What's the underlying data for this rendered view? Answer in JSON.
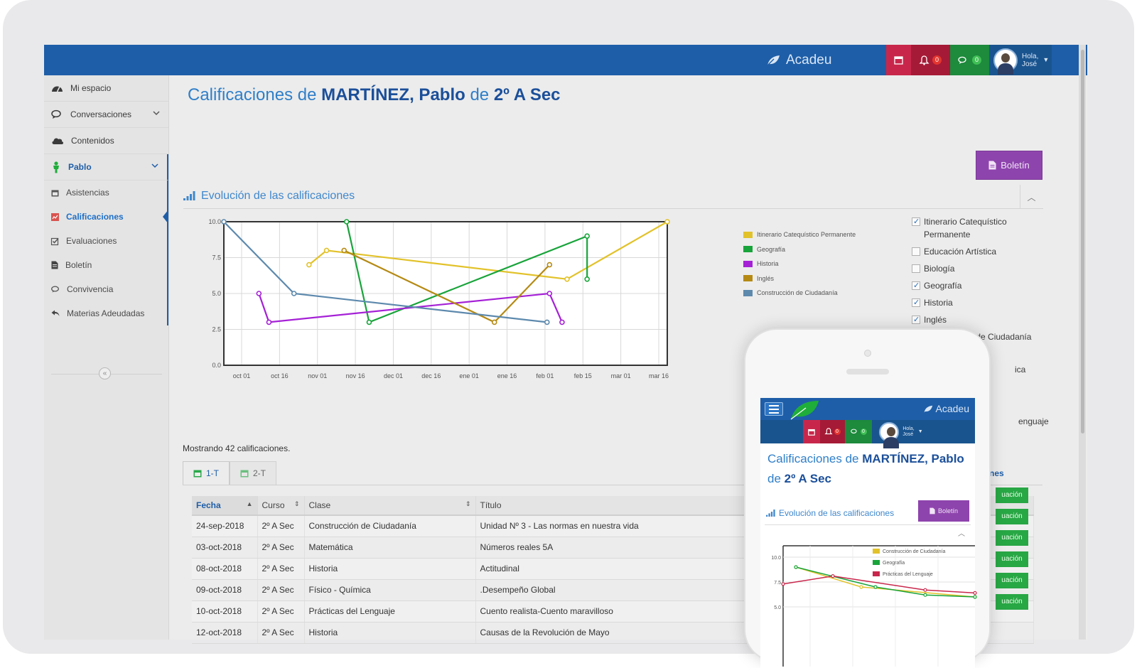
{
  "topbar": {
    "brand": "Acadeu",
    "notifications_count": "0",
    "messages_count": "0",
    "user_greeting": "Hola,",
    "user_name": "José"
  },
  "sidebar": {
    "items": [
      {
        "label": "Mi espacio",
        "icon": "tachometer-icon"
      },
      {
        "label": "Conversaciones",
        "icon": "chat-icon"
      },
      {
        "label": "Contenidos",
        "icon": "cloud-icon"
      },
      {
        "label": "Pablo",
        "icon": "person-icon"
      }
    ],
    "subitems": [
      {
        "label": "Asistencias",
        "icon": "calendar-icon"
      },
      {
        "label": "Calificaciones",
        "icon": "chart-icon"
      },
      {
        "label": "Evaluaciones",
        "icon": "checklist-icon"
      },
      {
        "label": "Boletín",
        "icon": "document-icon"
      },
      {
        "label": "Convivencia",
        "icon": "chat-icon"
      },
      {
        "label": "Materias Adeudadas",
        "icon": "reply-icon"
      }
    ],
    "collapse_label": "«"
  },
  "page": {
    "title_prefix": "Calificaciones de ",
    "student": "MARTÍNEZ, Pablo",
    "title_mid": " de ",
    "course": "2º A Sec",
    "boletin_label": "Boletín",
    "panel_title": "Evolución de las calificaciones",
    "showing_text": "Mostrando 42 calificaciones."
  },
  "chart_data": {
    "type": "line",
    "x_ticks": [
      "oct 01",
      "oct 16",
      "nov 01",
      "nov 16",
      "dec 01",
      "dec 16",
      "ene 01",
      "ene 16",
      "feb 01",
      "feb 15",
      "mar 01",
      "mar 16"
    ],
    "y_ticks": [
      "0.0",
      "2.5",
      "5.0",
      "7.5",
      "10.0"
    ],
    "ylim": [
      0,
      10
    ],
    "x_range": [
      "2018-09-24",
      "2019-03-20"
    ],
    "grid": true,
    "series": [
      {
        "name": "Itinerario Catequístico Permanente",
        "color": "#e2c22a",
        "points": [
          [
            "2018-10-28",
            7.0
          ],
          [
            "2018-11-04",
            8.0
          ],
          [
            "2019-02-08",
            6.0
          ],
          [
            "2019-03-20",
            10.0
          ]
        ]
      },
      {
        "name": "Geografía",
        "color": "#18a43a",
        "points": [
          [
            "2018-11-12",
            10.0
          ],
          [
            "2018-11-21",
            3.0
          ],
          [
            "2019-02-16",
            9.0
          ],
          [
            "2019-02-16",
            6.0
          ]
        ]
      },
      {
        "name": "Historia",
        "color": "#a521d6",
        "points": [
          [
            "2018-10-08",
            5.0
          ],
          [
            "2018-10-12",
            3.0
          ],
          [
            "2019-02-01",
            5.0
          ],
          [
            "2019-02-06",
            3.0
          ]
        ]
      },
      {
        "name": "Inglés",
        "color": "#b58a14",
        "points": [
          [
            "2018-11-11",
            8.0
          ],
          [
            "2019-01-10",
            3.0
          ],
          [
            "2019-02-01",
            7.0
          ]
        ]
      },
      {
        "name": "Construcción de Ciudadanía",
        "color": "#5d89ad",
        "points": [
          [
            "2018-09-24",
            10.0
          ],
          [
            "2018-10-22",
            5.0
          ],
          [
            "2019-01-31",
            3.0
          ]
        ]
      }
    ]
  },
  "subject_filters": [
    {
      "label": "Itinerario Catequístico Permanente",
      "checked": true
    },
    {
      "label": "Educación Artística",
      "checked": false
    },
    {
      "label": "Biología",
      "checked": false
    },
    {
      "label": "Geografía",
      "checked": true
    },
    {
      "label": "Historia",
      "checked": true
    },
    {
      "label": "Inglés",
      "checked": true
    },
    {
      "label": "Construcción de Ciudadanía",
      "checked": true
    }
  ],
  "filter_tails": [
    "ica",
    "enguaje"
  ],
  "tabs": [
    "1-T",
    "2-T"
  ],
  "table": {
    "columns": [
      "Fecha",
      "Curso",
      "Clase",
      "Título"
    ],
    "eval_header": "nes",
    "eval_button": "uación",
    "rows": [
      [
        "24-sep-2018",
        "2º A Sec",
        "Construcción de Ciudadanía",
        "Unidad Nº 3 - Las normas en nuestra vida"
      ],
      [
        "03-oct-2018",
        "2º A Sec",
        "Matemática",
        "Números reales 5A"
      ],
      [
        "08-oct-2018",
        "2º A Sec",
        "Historia",
        "Actitudinal"
      ],
      [
        "09-oct-2018",
        "2º A Sec",
        "Físico - Química",
        ".Desempeño Global"
      ],
      [
        "10-oct-2018",
        "2º A Sec",
        "Prácticas del Lenguaje",
        "Cuento realista-Cuento maravilloso"
      ],
      [
        "12-oct-2018",
        "2º A Sec",
        "Historia",
        "Causas de la Revolución de Mayo"
      ]
    ]
  },
  "mobile": {
    "brand": "Acadeu",
    "title_prefix": "Calificaciones de ",
    "student": "MARTÍNEZ, Pablo",
    "title_mid": " de ",
    "course": "2º A Sec",
    "panel_title": "Evolución de las calificaciones",
    "boletin_label": "Boletín",
    "user_greeting": "Hola,",
    "user_name": "José",
    "notifications_count": "0",
    "messages_count": "0",
    "chart_data": {
      "type": "line",
      "y_ticks": [
        "5.0",
        "7.5",
        "10.0"
      ],
      "series": [
        {
          "name": "Construcción de Ciudadanía",
          "color": "#e2c22a"
        },
        {
          "name": "Geografía",
          "color": "#18a43a"
        },
        {
          "name": "Prácticas del Lenguaje",
          "color": "#c8274b"
        }
      ]
    }
  },
  "colors": {
    "topbar": "#1e5ea8",
    "accent": "#2f7fc9",
    "boletin": "#8e44ad",
    "eval": "#28a745"
  }
}
